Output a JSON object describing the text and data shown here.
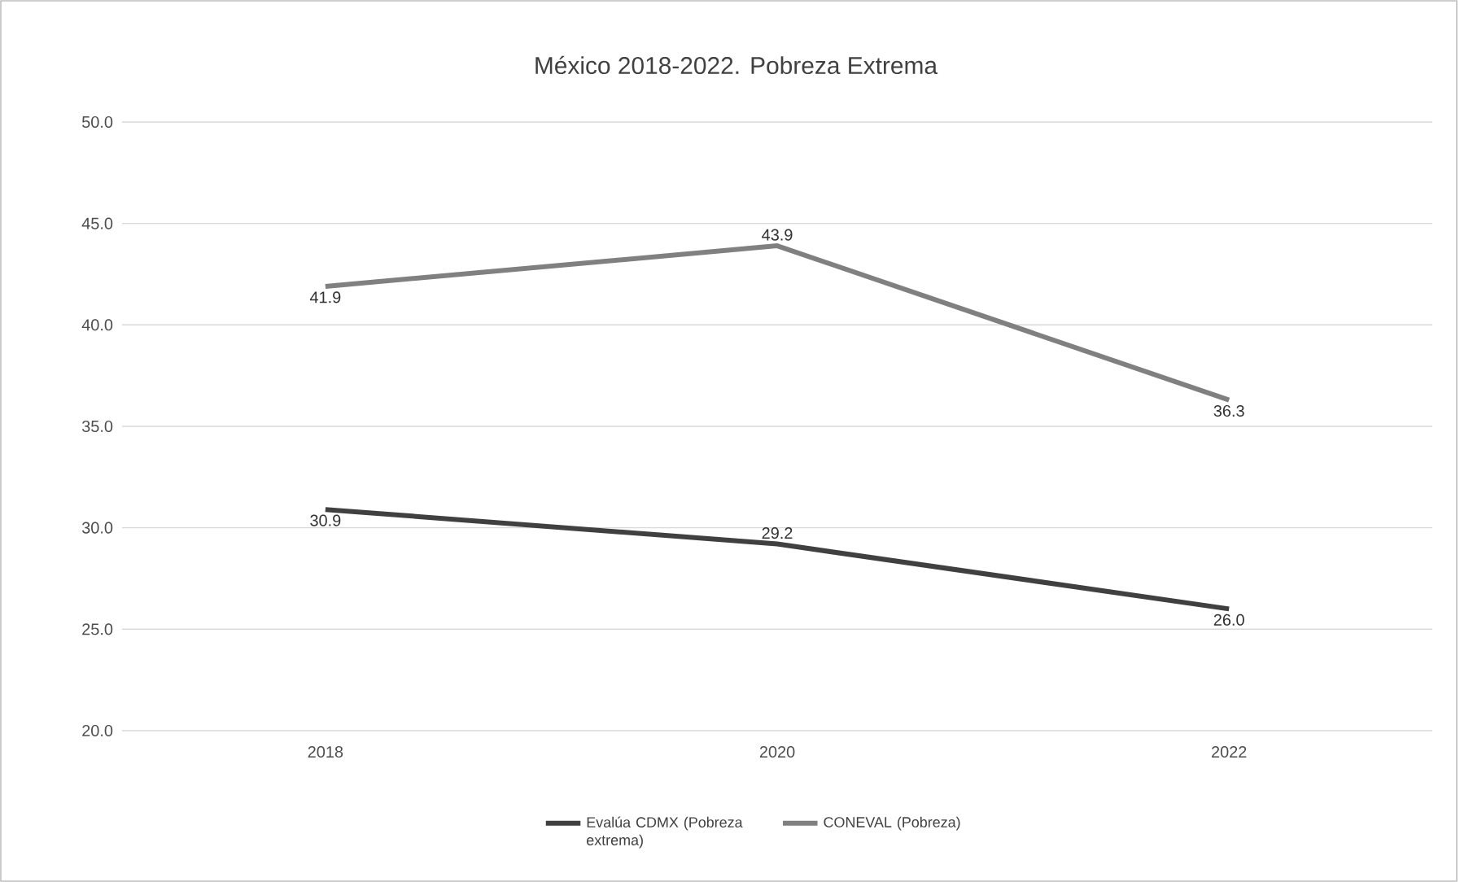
{
  "chart_data": {
    "type": "line",
    "title": "México 2018-2022. Pobreza Extrema",
    "categories": [
      "2018",
      "2020",
      "2022"
    ],
    "series": [
      {
        "name": "Evalúa CDMX (Pobreza extrema)",
        "color": "#404040",
        "values": [
          30.9,
          29.2,
          26.0
        ],
        "value_labels": [
          "30.9",
          "29.2",
          "26.0"
        ]
      },
      {
        "name": "CONEVAL (Pobreza)",
        "color": "#808080",
        "values": [
          41.9,
          43.9,
          36.3
        ],
        "value_labels": [
          "41.9",
          "43.9",
          "36.3"
        ]
      }
    ],
    "ylim": [
      20,
      50
    ],
    "yticks": [
      {
        "value": 20,
        "label": "20.0"
      },
      {
        "value": 25,
        "label": "25.0"
      },
      {
        "value": 30,
        "label": "30.0"
      },
      {
        "value": 35,
        "label": "35.0"
      },
      {
        "value": 40,
        "label": "40.0"
      },
      {
        "value": 45,
        "label": "45.0"
      },
      {
        "value": 50,
        "label": "50.0"
      }
    ],
    "grid": "y",
    "legend": "bottom",
    "marker": "none",
    "line_style": "solid"
  }
}
